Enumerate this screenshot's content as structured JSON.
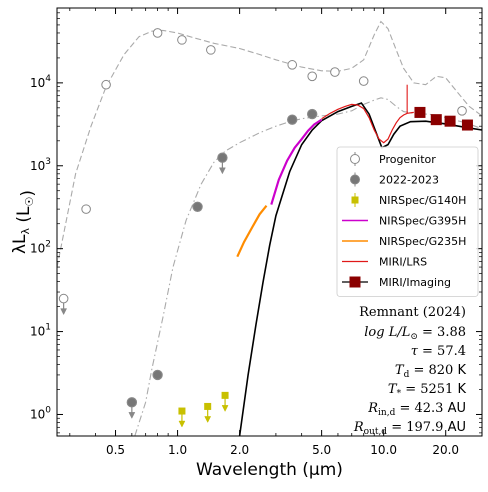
{
  "chart_data": {
    "type": "scatter",
    "xlabel": "Wavelength (μm)",
    "ylabel": "λL_λ (L_☉)",
    "x_scale": "log",
    "y_scale": "log",
    "xlim": [
      0.26,
      30
    ],
    "ylim": [
      0.55,
      80000
    ],
    "x_ticks": [
      0.5,
      1.0,
      2.0,
      5.0,
      10.0,
      20.0
    ],
    "x_tick_labels": [
      "0.5",
      "1.0",
      "2.0",
      "5.0",
      "10.0",
      "20.0"
    ],
    "y_ticks": [
      1,
      10,
      100,
      1000,
      10000
    ],
    "y_tick_labels": [
      "10^0",
      "10^1",
      "10^2",
      "10^3",
      "10^4"
    ],
    "legend_position": "right",
    "colors": {
      "progenitor": "#888888",
      "filled": "#777777",
      "g140h": "#c8c000",
      "g395h": "#cc00cc",
      "g235h": "#ff8c00",
      "lrs": "#e01818",
      "imaging": "#8b0000",
      "model": "#000000",
      "model_lines": "#aaaaaa"
    },
    "legend": [
      {
        "label": "Progenitor",
        "kind": "open-circle"
      },
      {
        "label": "2022-2023",
        "kind": "filled-circle"
      },
      {
        "label": "NIRSpec/G140H",
        "kind": "yellow-square"
      },
      {
        "label": "NIRSpec/G395H",
        "kind": "magenta-line"
      },
      {
        "label": "NIRSpec/G235H",
        "kind": "orange-line"
      },
      {
        "label": "MIRI/LRS",
        "kind": "red-line"
      },
      {
        "label": "MIRI/Imaging",
        "kind": "darkred-square"
      }
    ],
    "annotation": {
      "title": "Remnant (2024)",
      "lines": [
        {
          "lhs": "log L/L",
          "sub": "⊙",
          "rhs": " = 3.88",
          "unit": ""
        },
        {
          "lhs": "τ",
          "sub": "",
          "rhs": " = 57.4",
          "unit": ""
        },
        {
          "lhs": "T",
          "sub": "d",
          "rhs": " = 820",
          "unit": " K"
        },
        {
          "lhs": "T",
          "sub": "*",
          "rhs": " = 5251",
          "unit": " K"
        },
        {
          "lhs": "R",
          "sub": "in,d",
          "rhs": " = 42.3",
          "unit": " AU"
        },
        {
          "lhs": "R",
          "sub": "out,d",
          "rhs": " = 197.9",
          "unit": " AU"
        }
      ]
    },
    "series": [
      {
        "name": "Progenitor",
        "marker": "open-circle",
        "points": [
          [
            0.28,
            25,
            "ul"
          ],
          [
            0.36,
            300
          ],
          [
            0.45,
            9500
          ],
          [
            0.8,
            40000
          ],
          [
            1.05,
            33000
          ],
          [
            1.45,
            25000
          ],
          [
            3.6,
            16500
          ],
          [
            4.5,
            12000
          ],
          [
            5.8,
            13500
          ],
          [
            8.0,
            10500
          ],
          [
            24,
            4600
          ]
        ]
      },
      {
        "name": "2022-2023",
        "marker": "filled-circle",
        "points": [
          [
            0.6,
            1.4,
            "ul"
          ],
          [
            0.8,
            3.0
          ],
          [
            1.25,
            320
          ],
          [
            1.65,
            1250,
            "ul"
          ],
          [
            3.6,
            3600
          ],
          [
            4.5,
            4200
          ]
        ]
      },
      {
        "name": "NIRSpec/G140H",
        "marker": "yellow-square",
        "points": [
          [
            1.05,
            1.1,
            "ul"
          ],
          [
            1.4,
            1.25,
            "ul"
          ],
          [
            1.7,
            1.7,
            "ul"
          ]
        ]
      },
      {
        "name": "NIRSpec/G395H",
        "line": [
          [
            2.85,
            340
          ],
          [
            3.1,
            680
          ],
          [
            3.4,
            1150
          ],
          [
            3.7,
            1650
          ],
          [
            4.0,
            2100
          ],
          [
            4.3,
            2650
          ],
          [
            4.6,
            3150
          ],
          [
            5.0,
            3600
          ]
        ]
      },
      {
        "name": "NIRSpec/G235H",
        "line": [
          [
            1.95,
            80
          ],
          [
            2.1,
            120
          ],
          [
            2.3,
            180
          ],
          [
            2.5,
            260
          ],
          [
            2.7,
            330
          ]
        ]
      },
      {
        "name": "MIRI/LRS",
        "line": [
          [
            5.0,
            3700
          ],
          [
            5.5,
            4300
          ],
          [
            6.0,
            4800
          ],
          [
            6.5,
            5200
          ],
          [
            7.0,
            5500
          ],
          [
            7.5,
            5400
          ],
          [
            8.0,
            4900
          ],
          [
            8.5,
            3800
          ],
          [
            9.0,
            2700
          ],
          [
            9.5,
            2100
          ],
          [
            10.0,
            1900
          ],
          [
            10.5,
            2100
          ],
          [
            11.0,
            2700
          ],
          [
            11.5,
            3300
          ],
          [
            12.0,
            3800
          ],
          [
            12.5,
            4100
          ],
          [
            13.0,
            4300
          ],
          [
            14.0,
            4400
          ]
        ]
      },
      {
        "name": "MIRI/Imaging",
        "marker": "darkred-square",
        "points": [
          [
            15.0,
            4400
          ],
          [
            18.0,
            3600
          ],
          [
            21.0,
            3450
          ],
          [
            25.5,
            3100
          ]
        ]
      },
      {
        "name": "Remnant model",
        "line": [
          [
            2.0,
            0.55
          ],
          [
            2.2,
            3
          ],
          [
            2.4,
            12
          ],
          [
            2.6,
            40
          ],
          [
            2.8,
            110
          ],
          [
            3.0,
            250
          ],
          [
            3.5,
            850
          ],
          [
            4.0,
            1800
          ],
          [
            4.5,
            2700
          ],
          [
            5.0,
            3500
          ],
          [
            6.0,
            4500
          ],
          [
            7.0,
            5200
          ],
          [
            7.8,
            5700
          ],
          [
            8.5,
            4200
          ],
          [
            9.2,
            2500
          ],
          [
            9.8,
            1650
          ],
          [
            10.5,
            1800
          ],
          [
            11.2,
            2400
          ],
          [
            12.0,
            3000
          ],
          [
            13.5,
            3400
          ],
          [
            16.0,
            3450
          ],
          [
            20.0,
            3200
          ],
          [
            25.0,
            2900
          ],
          [
            30.0,
            2700
          ]
        ]
      },
      {
        "name": "Progenitor model",
        "line": [
          [
            0.26,
            60
          ],
          [
            0.28,
            150
          ],
          [
            0.32,
            800
          ],
          [
            0.38,
            3000
          ],
          [
            0.45,
            9000
          ],
          [
            0.55,
            22000
          ],
          [
            0.65,
            36000
          ],
          [
            0.75,
            42000
          ],
          [
            0.85,
            43000
          ],
          [
            1.0,
            40000
          ],
          [
            1.2,
            35000
          ],
          [
            1.5,
            30000
          ],
          [
            2.0,
            26000
          ],
          [
            2.5,
            22000
          ],
          [
            3.0,
            19000
          ],
          [
            3.5,
            17000
          ],
          [
            4.0,
            15500
          ],
          [
            5.0,
            14000
          ],
          [
            6.0,
            13800
          ],
          [
            7.0,
            15000
          ],
          [
            8.0,
            19000
          ],
          [
            9.0,
            38000
          ],
          [
            9.7,
            55000
          ],
          [
            10.5,
            45000
          ],
          [
            11.5,
            25000
          ],
          [
            12.5,
            15000
          ],
          [
            14.0,
            10000
          ],
          [
            16.0,
            9500
          ],
          [
            18.0,
            12000
          ],
          [
            20.0,
            11500
          ],
          [
            23.0,
            7500
          ],
          [
            26.0,
            5200
          ],
          [
            30.0,
            4000
          ]
        ]
      },
      {
        "name": "2022-2023 model",
        "line": [
          [
            0.62,
            0.55
          ],
          [
            0.7,
            1.4
          ],
          [
            0.75,
            3.5
          ],
          [
            0.85,
            15
          ],
          [
            0.95,
            60
          ],
          [
            1.1,
            220
          ],
          [
            1.3,
            600
          ],
          [
            1.5,
            1100
          ],
          [
            1.7,
            1500
          ],
          [
            2.0,
            1900
          ],
          [
            2.5,
            2500
          ],
          [
            3.0,
            3000
          ],
          [
            3.5,
            3400
          ],
          [
            4.0,
            3700
          ],
          [
            5.0,
            4000
          ],
          [
            6.0,
            4200
          ],
          [
            7.0,
            4600
          ],
          [
            8.0,
            5500
          ],
          [
            9.0,
            6200
          ],
          [
            9.7,
            6600
          ],
          [
            10.5,
            6300
          ],
          [
            11.5,
            5200
          ],
          [
            12.5,
            4500
          ],
          [
            14.0,
            4300
          ],
          [
            16.0,
            4200
          ],
          [
            18.0,
            4100
          ],
          [
            20.0,
            3800
          ],
          [
            25.0,
            3300
          ],
          [
            30.0,
            2800
          ]
        ]
      }
    ]
  }
}
